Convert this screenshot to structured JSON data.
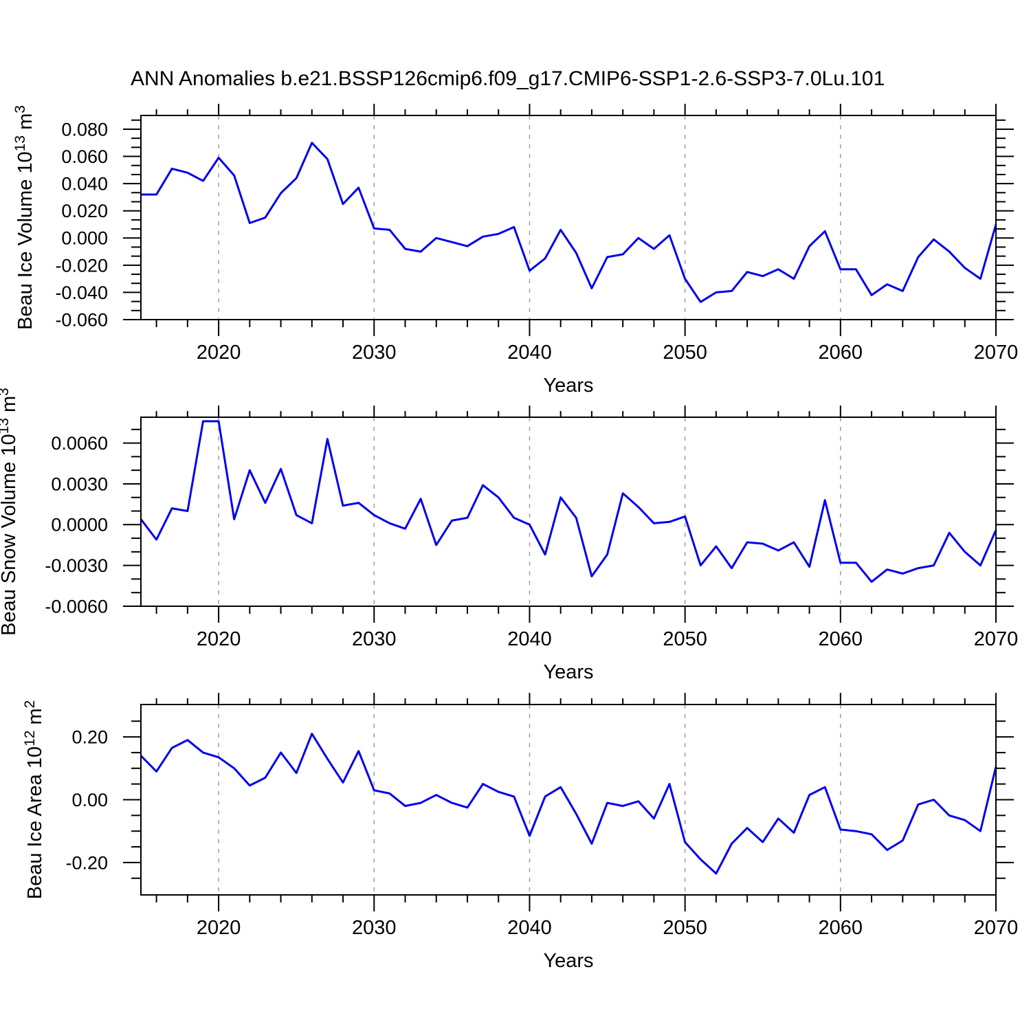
{
  "page": {
    "title": "ANN Anomalies b.e21.BSSP126cmip6.f09_g17.CMIP6-SSP1-2.6-SSP3-7.0Lu.101"
  },
  "style": {
    "line_color": "#0000ee",
    "axis_color": "#000000",
    "grid_color": "#9e9e9e",
    "background": "#ffffff"
  },
  "chart_data": [
    {
      "type": "line",
      "name": "beau-ice-volume",
      "ylabel": "Beau Ice Volume 10^13 m^3",
      "ylabel_parts": [
        "Beau Ice Volume 10",
        "13",
        " m",
        "3"
      ],
      "xlabel": "Years",
      "x_start": 2015,
      "x_end": 2070,
      "xticks": [
        2020,
        2030,
        2040,
        2050,
        2060,
        2070
      ],
      "xminor_step": 2,
      "grid_years": [
        2020,
        2030,
        2040,
        2050,
        2060
      ],
      "ylim": [
        -0.06,
        0.0901
      ],
      "yticks": [
        {
          "v": 0.08,
          "label": "0.080"
        },
        {
          "v": 0.06,
          "label": "0.060"
        },
        {
          "v": 0.04,
          "label": "0.040"
        },
        {
          "v": 0.02,
          "label": "0.020"
        },
        {
          "v": 0.0,
          "label": "0.000"
        },
        {
          "v": -0.02,
          "label": "-0.020"
        },
        {
          "v": -0.04,
          "label": "-0.040"
        },
        {
          "v": -0.06,
          "label": "-0.060"
        }
      ],
      "yminor_divisions": 3,
      "values": [
        0.032,
        0.032,
        0.051,
        0.048,
        0.042,
        0.059,
        0.046,
        0.011,
        0.015,
        0.033,
        0.044,
        0.07,
        0.058,
        0.025,
        0.037,
        0.007,
        0.006,
        -0.008,
        -0.01,
        0.0,
        -0.003,
        -0.006,
        0.001,
        0.003,
        0.008,
        -0.024,
        -0.015,
        0.006,
        -0.011,
        -0.037,
        -0.014,
        -0.012,
        0.0,
        -0.008,
        0.002,
        -0.03,
        -0.047,
        -0.04,
        -0.039,
        -0.025,
        -0.028,
        -0.023,
        -0.03,
        -0.006,
        0.005,
        -0.023,
        -0.023,
        -0.042,
        -0.034,
        -0.039,
        -0.014,
        -0.001,
        -0.01,
        -0.022,
        -0.03,
        0.01
      ]
    },
    {
      "type": "line",
      "name": "beau-snow-volume",
      "ylabel": "Beau Snow Volume 10^13 m^3",
      "ylabel_parts": [
        "Beau Snow Volume 10",
        "13",
        " m",
        "3"
      ],
      "xlabel": "Years",
      "x_start": 2015,
      "x_end": 2070,
      "xticks": [
        2020,
        2030,
        2040,
        2050,
        2060,
        2070
      ],
      "xminor_step": 2,
      "grid_years": [
        2020,
        2030,
        2040,
        2050,
        2060
      ],
      "ylim": [
        -0.006,
        0.0079
      ],
      "yticks": [
        {
          "v": 0.006,
          "label": "0.0060"
        },
        {
          "v": 0.003,
          "label": "0.0030"
        },
        {
          "v": 0.0,
          "label": "0.0000"
        },
        {
          "v": -0.003,
          "label": "-0.0030"
        },
        {
          "v": -0.006,
          "label": "-0.0060"
        }
      ],
      "yminor_divisions": 3,
      "values": [
        0.0004,
        -0.0011,
        0.0012,
        0.001,
        0.0076,
        0.0076,
        0.0004,
        0.004,
        0.0016,
        0.0041,
        0.0007,
        0.0001,
        0.0063,
        0.0014,
        0.0016,
        0.0007,
        0.0001,
        -0.0003,
        0.0019,
        -0.0015,
        0.0003,
        0.0005,
        0.0029,
        0.002,
        0.0005,
        0.0,
        -0.0022,
        0.002,
        0.0005,
        -0.0038,
        -0.0022,
        0.0023,
        0.0013,
        0.0001,
        0.0002,
        0.0006,
        -0.003,
        -0.0016,
        -0.0032,
        -0.0013,
        -0.0014,
        -0.0019,
        -0.0013,
        -0.0031,
        0.0018,
        -0.0028,
        -0.0028,
        -0.0042,
        -0.0033,
        -0.0036,
        -0.0032,
        -0.003,
        -0.0006,
        -0.002,
        -0.003,
        -0.0004
      ]
    },
    {
      "type": "line",
      "name": "beau-ice-area",
      "ylabel": "Beau Ice Area 10^12 m^2",
      "ylabel_parts": [
        "Beau Ice Area 10",
        "12",
        " m",
        "2"
      ],
      "xlabel": "Years",
      "x_start": 2015,
      "x_end": 2070,
      "xticks": [
        2020,
        2030,
        2040,
        2050,
        2060,
        2070
      ],
      "xminor_step": 2,
      "grid_years": [
        2020,
        2030,
        2040,
        2050,
        2060
      ],
      "ylim": [
        -0.303,
        0.303
      ],
      "yticks": [
        {
          "v": 0.2,
          "label": "0.20"
        },
        {
          "v": 0.0,
          "label": "0.00"
        },
        {
          "v": -0.2,
          "label": "-0.20"
        }
      ],
      "yminor_divisions": 4,
      "values": [
        0.14,
        0.09,
        0.165,
        0.19,
        0.15,
        0.135,
        0.1,
        0.045,
        0.07,
        0.15,
        0.085,
        0.21,
        0.13,
        0.055,
        0.155,
        0.03,
        0.02,
        -0.02,
        -0.01,
        0.015,
        -0.01,
        -0.025,
        0.05,
        0.025,
        0.01,
        -0.115,
        0.01,
        0.04,
        -0.045,
        -0.14,
        -0.01,
        -0.02,
        -0.005,
        -0.06,
        0.05,
        -0.135,
        -0.19,
        -0.235,
        -0.14,
        -0.09,
        -0.135,
        -0.06,
        -0.105,
        0.015,
        0.04,
        -0.095,
        -0.1,
        -0.11,
        -0.16,
        -0.13,
        -0.015,
        0.0,
        -0.05,
        -0.065,
        -0.1,
        0.105
      ]
    }
  ]
}
